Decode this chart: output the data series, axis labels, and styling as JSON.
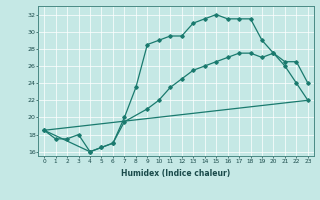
{
  "xlabel": "Humidex (Indice chaleur)",
  "xlim": [
    -0.5,
    23.5
  ],
  "ylim": [
    15.5,
    33
  ],
  "yticks": [
    16,
    18,
    20,
    22,
    24,
    26,
    28,
    30,
    32
  ],
  "xticks": [
    0,
    1,
    2,
    3,
    4,
    5,
    6,
    7,
    8,
    9,
    10,
    11,
    12,
    13,
    14,
    15,
    16,
    17,
    18,
    19,
    20,
    21,
    22,
    23
  ],
  "bg_color": "#c5e8e5",
  "line_color": "#1a7a6e",
  "line1_x": [
    0,
    1,
    2,
    3,
    4,
    5,
    6,
    7,
    8,
    9,
    10,
    11,
    12,
    13,
    14,
    15,
    16,
    17,
    18,
    19,
    20,
    21,
    22,
    23
  ],
  "line1_y": [
    18.5,
    17.5,
    17.5,
    18.0,
    16.0,
    16.5,
    17.0,
    20.0,
    23.5,
    28.5,
    29.0,
    29.5,
    29.5,
    31.0,
    31.5,
    32.0,
    31.5,
    31.5,
    31.5,
    29.0,
    27.5,
    26.0,
    24.0,
    22.0
  ],
  "line2_x": [
    0,
    4,
    5,
    6,
    7,
    9,
    10,
    11,
    12,
    13,
    14,
    15,
    16,
    17,
    18,
    19,
    20,
    21,
    22,
    23
  ],
  "line2_y": [
    18.5,
    16.0,
    16.5,
    17.0,
    19.5,
    21.0,
    22.0,
    23.5,
    24.5,
    25.5,
    26.0,
    26.5,
    27.0,
    27.5,
    27.5,
    27.0,
    27.5,
    26.5,
    26.5,
    24.0
  ],
  "line3_x": [
    0,
    23
  ],
  "line3_y": [
    18.5,
    22.0
  ]
}
